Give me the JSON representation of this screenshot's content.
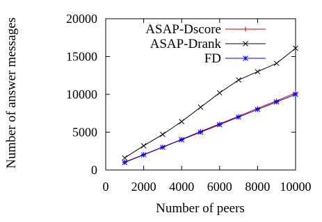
{
  "chart_data": {
    "type": "line",
    "title": "",
    "xlabel": "Number of peers",
    "ylabel": "Number of answer messages",
    "x": [
      1000,
      2000,
      3000,
      4000,
      5000,
      6000,
      7000,
      8000,
      9000,
      10000
    ],
    "xlim": [
      0,
      10000
    ],
    "ylim": [
      0,
      20000
    ],
    "xticks": [
      0,
      2000,
      4000,
      6000,
      8000,
      10000
    ],
    "xtick_labels": [
      "0",
      "2000",
      "4000",
      "6000",
      "8000",
      "10000"
    ],
    "yticks": [
      0,
      5000,
      10000,
      15000,
      20000
    ],
    "ytick_labels": [
      "0",
      "5000",
      "10000",
      "15000",
      "20000"
    ],
    "grid": false,
    "legend_position": "top-right",
    "series": [
      {
        "name": "ASAP-Dscore",
        "color": "#cc0000",
        "marker": "plus",
        "values": [
          1050,
          2050,
          3050,
          4050,
          5100,
          6100,
          7100,
          8150,
          9150,
          10200
        ]
      },
      {
        "name": "ASAP-Drank",
        "color": "#000000",
        "marker": "x",
        "values": [
          1600,
          3200,
          4700,
          6400,
          8300,
          10200,
          11900,
          13000,
          14100,
          16100
        ]
      },
      {
        "name": "FD",
        "color": "#0000ff",
        "marker": "star",
        "values": [
          1000,
          2000,
          3000,
          4000,
          5000,
          6000,
          7000,
          8000,
          9000,
          10000
        ]
      }
    ]
  }
}
